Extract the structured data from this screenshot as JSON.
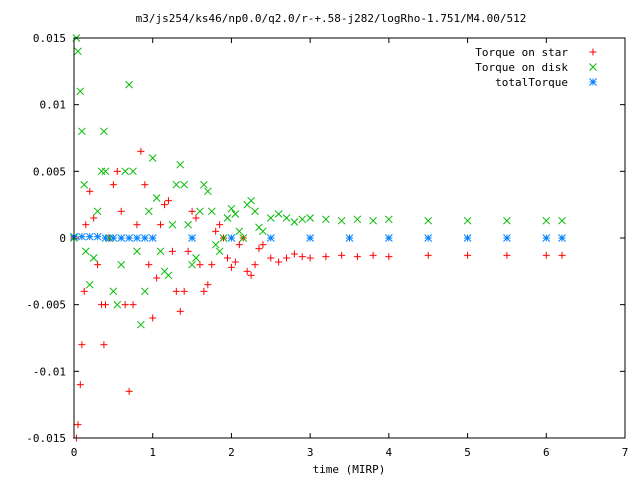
{
  "chart_data": {
    "type": "scatter",
    "title": "m3/js254/ks46/np0.0/q2.0/r-+.58-j282/logRho-1.751/M4.00/512",
    "xlabel": "time (MIRP)",
    "ylabel": "",
    "xlim": [
      0,
      7
    ],
    "ylim": [
      -0.015,
      0.015
    ],
    "x_ticks": [
      "0",
      "1",
      "2",
      "3",
      "4",
      "5",
      "6",
      "7"
    ],
    "y_ticks": [
      "-0.015",
      "-0.01",
      "-0.005",
      "0",
      "0.005",
      "0.01",
      "0.015"
    ],
    "grid": false,
    "legend_position": "top-right",
    "series": [
      {
        "name": "Torque on star",
        "marker": "+",
        "color": "#ff0000",
        "x": [
          0.0,
          0.03,
          0.05,
          0.08,
          0.1,
          0.13,
          0.15,
          0.2,
          0.25,
          0.3,
          0.35,
          0.38,
          0.4,
          0.45,
          0.5,
          0.55,
          0.6,
          0.65,
          0.7,
          0.75,
          0.8,
          0.85,
          0.9,
          0.95,
          1.0,
          1.05,
          1.1,
          1.15,
          1.2,
          1.25,
          1.3,
          1.35,
          1.4,
          1.45,
          1.5,
          1.55,
          1.6,
          1.65,
          1.7,
          1.75,
          1.8,
          1.85,
          1.9,
          1.95,
          2.0,
          2.05,
          2.1,
          2.15,
          2.2,
          2.25,
          2.3,
          2.35,
          2.4,
          2.5,
          2.6,
          2.7,
          2.8,
          2.9,
          3.0,
          3.2,
          3.4,
          3.6,
          3.8,
          4.0,
          4.5,
          5.0,
          5.5,
          6.0,
          6.2
        ],
        "y": [
          0.0,
          -0.015,
          -0.014,
          -0.011,
          -0.008,
          -0.004,
          0.001,
          0.0035,
          0.0015,
          -0.002,
          -0.005,
          -0.008,
          -0.005,
          0.0,
          0.004,
          0.005,
          0.002,
          -0.005,
          -0.0115,
          -0.005,
          0.001,
          0.0065,
          0.004,
          -0.002,
          -0.006,
          -0.003,
          0.001,
          0.0025,
          0.0028,
          -0.001,
          -0.004,
          -0.0055,
          -0.004,
          -0.001,
          0.002,
          0.0015,
          -0.002,
          -0.004,
          -0.0035,
          -0.002,
          0.0005,
          0.001,
          0.0,
          -0.0015,
          -0.0022,
          -0.0018,
          -0.0005,
          0.0,
          -0.0025,
          -0.0028,
          -0.002,
          -0.0008,
          -0.0005,
          -0.0015,
          -0.0018,
          -0.0015,
          -0.0012,
          -0.0014,
          -0.0015,
          -0.0014,
          -0.0013,
          -0.0014,
          -0.0013,
          -0.0014,
          -0.0013,
          -0.0013,
          -0.0013,
          -0.0013,
          -0.0013
        ]
      },
      {
        "name": "Torque on disk",
        "marker": "x",
        "color": "#00bb00",
        "x": [
          0.0,
          0.03,
          0.05,
          0.08,
          0.1,
          0.13,
          0.15,
          0.2,
          0.25,
          0.3,
          0.35,
          0.38,
          0.4,
          0.45,
          0.5,
          0.55,
          0.6,
          0.65,
          0.7,
          0.75,
          0.8,
          0.85,
          0.9,
          0.95,
          1.0,
          1.05,
          1.1,
          1.15,
          1.2,
          1.25,
          1.3,
          1.35,
          1.4,
          1.45,
          1.5,
          1.55,
          1.6,
          1.65,
          1.7,
          1.75,
          1.8,
          1.85,
          1.9,
          1.95,
          2.0,
          2.05,
          2.1,
          2.15,
          2.2,
          2.25,
          2.3,
          2.35,
          2.4,
          2.5,
          2.6,
          2.7,
          2.8,
          2.9,
          3.0,
          3.2,
          3.4,
          3.6,
          3.8,
          4.0,
          4.5,
          5.0,
          5.5,
          6.0,
          6.2
        ],
        "y": [
          0.0,
          0.015,
          0.014,
          0.011,
          0.008,
          0.004,
          -0.001,
          -0.0035,
          -0.0015,
          0.002,
          0.005,
          0.008,
          0.005,
          0.0,
          -0.004,
          -0.005,
          -0.002,
          0.005,
          0.0115,
          0.005,
          -0.001,
          -0.0065,
          -0.004,
          0.002,
          0.006,
          0.003,
          -0.001,
          -0.0025,
          -0.0028,
          0.001,
          0.004,
          0.0055,
          0.004,
          0.001,
          -0.002,
          -0.0015,
          0.002,
          0.004,
          0.0035,
          0.002,
          -0.0005,
          -0.001,
          0.0,
          0.0015,
          0.0022,
          0.0018,
          0.0005,
          0.0,
          0.0025,
          0.0028,
          0.002,
          0.0008,
          0.0005,
          0.0015,
          0.0018,
          0.0015,
          0.0012,
          0.0014,
          0.0015,
          0.0014,
          0.0013,
          0.0014,
          0.0013,
          0.0014,
          0.0013,
          0.0013,
          0.0013,
          0.0013,
          0.0013
        ]
      },
      {
        "name": "totalTorque",
        "marker": "*",
        "color": "#0080ff",
        "x": [
          0.0,
          0.1,
          0.2,
          0.3,
          0.4,
          0.5,
          0.6,
          0.7,
          0.8,
          0.9,
          1.0,
          1.5,
          2.0,
          2.5,
          3.0,
          3.5,
          4.0,
          4.5,
          5.0,
          5.5,
          6.0,
          6.2
        ],
        "y": [
          0.0001,
          0.0001,
          0.0001,
          0.0001,
          0.0,
          0.0,
          0.0,
          0.0,
          0.0,
          0.0,
          0.0,
          0.0,
          0.0,
          0.0,
          0.0,
          0.0,
          0.0,
          0.0,
          0.0,
          0.0,
          0.0,
          0.0
        ]
      }
    ]
  }
}
